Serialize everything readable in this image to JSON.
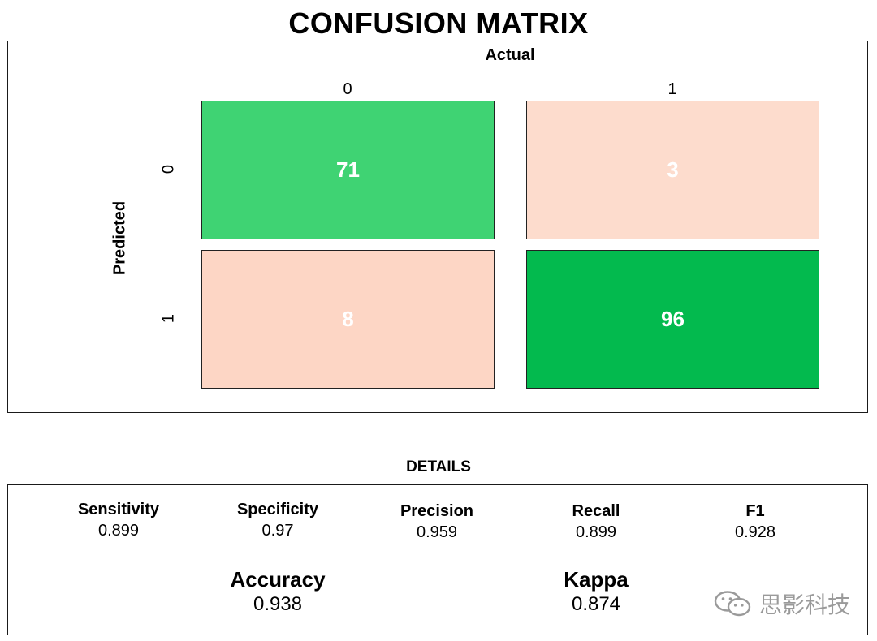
{
  "chart_data": {
    "type": "heatmap",
    "title": "CONFUSION MATRIX",
    "xlabel": "Actual",
    "ylabel": "Predicted",
    "x_categories": [
      "0",
      "1"
    ],
    "y_categories": [
      "0",
      "1"
    ],
    "cells": [
      {
        "predicted": "0",
        "actual": "0",
        "value": 71,
        "color": "#3fd373"
      },
      {
        "predicted": "0",
        "actual": "1",
        "value": 3,
        "color": "#fddccd"
      },
      {
        "predicted": "1",
        "actual": "0",
        "value": 8,
        "color": "#fdd6c5"
      },
      {
        "predicted": "1",
        "actual": "1",
        "value": 96,
        "color": "#03ba4e"
      }
    ]
  },
  "details": {
    "title": "DETAILS",
    "metrics": [
      {
        "label": "Sensitivity",
        "value": "0.899"
      },
      {
        "label": "Specificity",
        "value": "0.97"
      },
      {
        "label": "Precision",
        "value": "0.959"
      },
      {
        "label": "Recall",
        "value": "0.899"
      },
      {
        "label": "F1",
        "value": "0.928"
      }
    ],
    "summary": [
      {
        "label": "Accuracy",
        "value": "0.938"
      },
      {
        "label": "Kappa",
        "value": "0.874"
      }
    ]
  },
  "watermark": {
    "text": "思影科技",
    "icon": "wechat-icon",
    "color": "#9a9a9a"
  }
}
